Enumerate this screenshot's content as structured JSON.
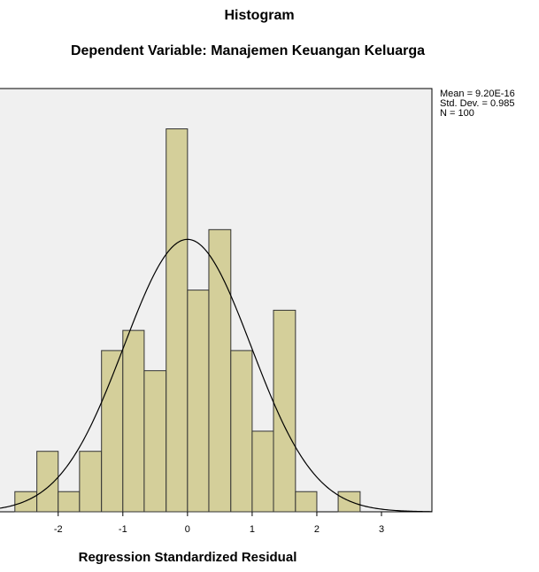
{
  "chart_data": {
    "type": "histogram",
    "title": "Histogram",
    "subtitle": "Dependent Variable: Manajemen Keuangan Keluarga",
    "x_label": "Regression Standardized Residual",
    "bins": [
      -2.67,
      -2.33,
      -2,
      -1.67,
      -1.33,
      -1,
      -0.67,
      -0.33,
      0,
      0.33,
      0.67,
      1,
      1.33,
      1.67,
      2,
      2.33,
      2.67
    ],
    "values": [
      1,
      3,
      1,
      3,
      8,
      9,
      7,
      19,
      11,
      14,
      8,
      4,
      10,
      1,
      0,
      1
    ],
    "color": "#d4cf9a",
    "xlim": [
      -2.9,
      3.78
    ],
    "xticks": [
      -2,
      -1,
      0,
      1,
      2,
      3
    ],
    "ylim": [
      0,
      21
    ],
    "normal_curve": {
      "mean": 9.2e-16,
      "std_dev": 0.985,
      "n": 100,
      "color": "#000000",
      "labels": [
        "Mean = 9.20E-16",
        "Std. Dev. = 0.985",
        "N = 100"
      ]
    }
  }
}
